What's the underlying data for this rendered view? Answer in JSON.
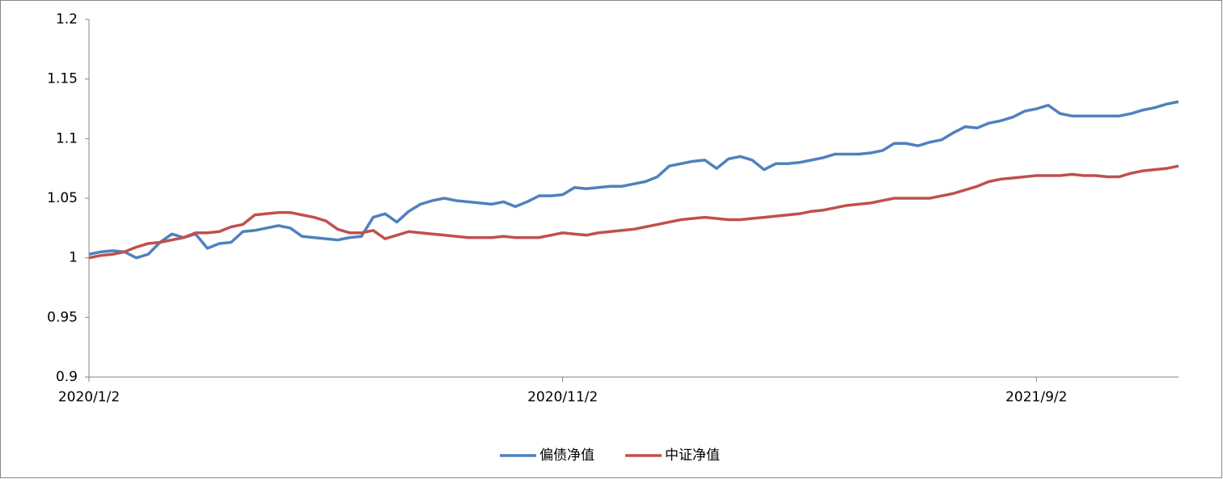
{
  "chart_data": {
    "type": "line",
    "categories": [
      "2020/1/2",
      null,
      null,
      null,
      null,
      null,
      null,
      null,
      null,
      null,
      null,
      null,
      null,
      null,
      null,
      null,
      null,
      null,
      null,
      null,
      null,
      null,
      null,
      null,
      null,
      null,
      null,
      null,
      null,
      null,
      null,
      null,
      null,
      null,
      null,
      null,
      null,
      null,
      null,
      null,
      "2020/11/2",
      null,
      null,
      null,
      null,
      null,
      null,
      null,
      null,
      null,
      null,
      null,
      null,
      null,
      null,
      null,
      null,
      null,
      null,
      null,
      null,
      null,
      null,
      null,
      null,
      null,
      null,
      null,
      null,
      null,
      null,
      null,
      null,
      null,
      null,
      null,
      null,
      null,
      null,
      null,
      "2021/9/2",
      null,
      null,
      null,
      null,
      null,
      null,
      null,
      null,
      null,
      null,
      null,
      null
    ],
    "series": [
      {
        "name": "偏债净值",
        "color": "#4f81bd",
        "values": [
          1.003,
          1.005,
          1.006,
          1.005,
          1.0,
          1.003,
          1.013,
          1.02,
          1.017,
          1.02,
          1.008,
          1.012,
          1.013,
          1.022,
          1.023,
          1.025,
          1.027,
          1.025,
          1.018,
          1.017,
          1.016,
          1.015,
          1.017,
          1.018,
          1.034,
          1.037,
          1.03,
          1.039,
          1.045,
          1.048,
          1.05,
          1.048,
          1.047,
          1.046,
          1.045,
          1.047,
          1.043,
          1.047,
          1.052,
          1.052,
          1.053,
          1.059,
          1.058,
          1.059,
          1.06,
          1.06,
          1.062,
          1.064,
          1.068,
          1.077,
          1.079,
          1.081,
          1.082,
          1.075,
          1.083,
          1.085,
          1.082,
          1.074,
          1.079,
          1.079,
          1.08,
          1.082,
          1.084,
          1.087,
          1.087,
          1.087,
          1.088,
          1.09,
          1.096,
          1.096,
          1.094,
          1.097,
          1.099,
          1.105,
          1.11,
          1.109,
          1.113,
          1.115,
          1.118,
          1.123,
          1.125,
          1.128,
          1.121,
          1.119,
          1.119,
          1.119,
          1.119,
          1.119,
          1.121,
          1.124,
          1.126,
          1.129,
          1.131
        ]
      },
      {
        "name": "中证净值",
        "color": "#c0504d",
        "values": [
          1.0,
          1.002,
          1.003,
          1.005,
          1.009,
          1.012,
          1.013,
          1.015,
          1.017,
          1.021,
          1.021,
          1.022,
          1.026,
          1.028,
          1.036,
          1.037,
          1.038,
          1.038,
          1.036,
          1.034,
          1.031,
          1.024,
          1.021,
          1.021,
          1.023,
          1.016,
          1.019,
          1.022,
          1.021,
          1.02,
          1.019,
          1.018,
          1.017,
          1.017,
          1.017,
          1.018,
          1.017,
          1.017,
          1.017,
          1.019,
          1.021,
          1.02,
          1.019,
          1.021,
          1.022,
          1.023,
          1.024,
          1.026,
          1.028,
          1.03,
          1.032,
          1.033,
          1.034,
          1.033,
          1.032,
          1.032,
          1.033,
          1.034,
          1.035,
          1.036,
          1.037,
          1.039,
          1.04,
          1.042,
          1.044,
          1.045,
          1.046,
          1.048,
          1.05,
          1.05,
          1.05,
          1.05,
          1.052,
          1.054,
          1.057,
          1.06,
          1.064,
          1.066,
          1.067,
          1.068,
          1.069,
          1.069,
          1.069,
          1.07,
          1.069,
          1.069,
          1.068,
          1.068,
          1.071,
          1.073,
          1.074,
          1.075,
          1.077
        ]
      }
    ],
    "ylim": [
      0.9,
      1.2
    ],
    "yticks": [
      0.9,
      0.95,
      1,
      1.05,
      1.1,
      1.15,
      1.2
    ],
    "grid": false,
    "legend": "bottom"
  }
}
